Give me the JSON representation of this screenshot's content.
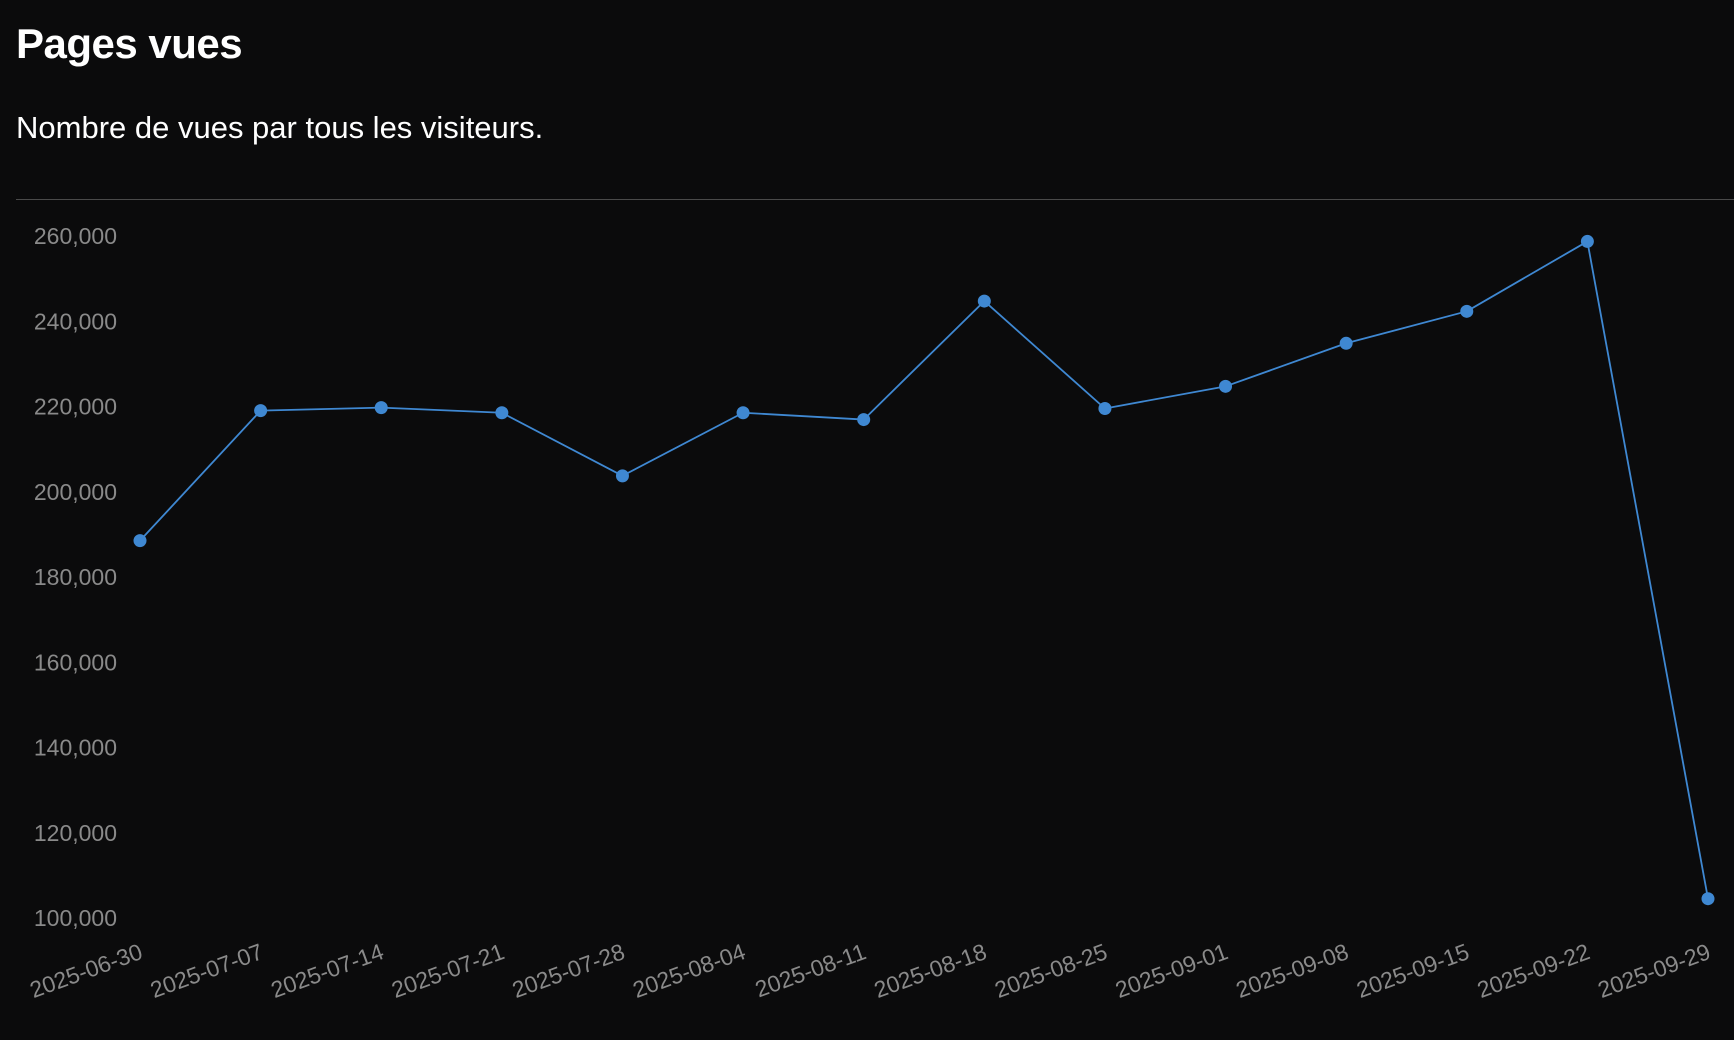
{
  "header": {
    "title": "Pages vues",
    "subtitle": "Nombre de vues par tous les visiteurs."
  },
  "colors": {
    "background": "#0b0b0c",
    "series": "#3f88d2",
    "tick_text": "#8a8a8a",
    "divider": "#4a4a4a"
  },
  "chart_data": {
    "type": "line",
    "title": "",
    "xlabel": "",
    "ylabel": "",
    "x": [
      "2025-06-30",
      "2025-07-07",
      "2025-07-14",
      "2025-07-21",
      "2025-07-28",
      "2025-08-04",
      "2025-08-11",
      "2025-08-18",
      "2025-08-25",
      "2025-09-01",
      "2025-09-08",
      "2025-09-15",
      "2025-09-22",
      "2025-09-29"
    ],
    "series": [
      {
        "values": [
          189000,
          219500,
          220200,
          219000,
          204200,
          219000,
          217400,
          245200,
          220000,
          225200,
          235300,
          242800,
          259200,
          105000
        ]
      }
    ],
    "ylim": [
      100000,
      260000
    ],
    "y_ticks": [
      100000,
      120000,
      140000,
      160000,
      180000,
      200000,
      220000,
      240000,
      260000
    ],
    "y_tick_labels": [
      "100,000",
      "120,000",
      "140,000",
      "160,000",
      "180,000",
      "200,000",
      "220,000",
      "240,000",
      "260,000"
    ],
    "grid": false,
    "legend": "none"
  }
}
